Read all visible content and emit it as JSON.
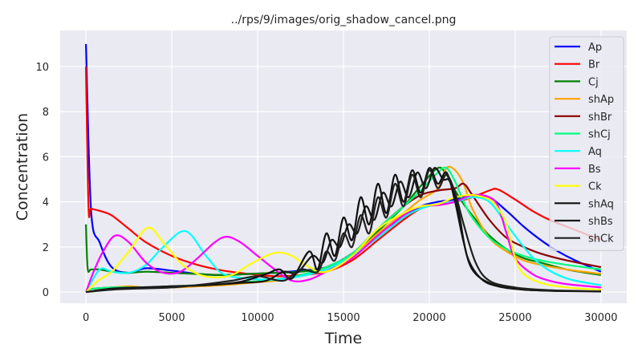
{
  "chart_data": {
    "type": "line",
    "title": "../rps/9/images/orig_shadow_cancel.png",
    "xlabel": "Time",
    "ylabel": "Concentration",
    "xlim": [
      -1500,
      31500
    ],
    "ylim": [
      -0.5,
      11.6
    ],
    "xticks": [
      0,
      5000,
      10000,
      15000,
      20000,
      25000,
      30000
    ],
    "yticks": [
      0,
      2,
      4,
      6,
      8,
      10
    ],
    "grid": true,
    "legend_position": "top-right",
    "series": [
      {
        "name": "Ap",
        "color": "#0000ff",
        "x": [
          0,
          300,
          800,
          1500,
          2500,
          3500,
          5000,
          6500,
          8000,
          9500,
          11000,
          12500,
          14000,
          15500,
          17000,
          18500,
          19500,
          20500,
          21500,
          22500,
          23500,
          24500,
          25500,
          26500,
          27500,
          28500,
          30000
        ],
        "y": [
          11.0,
          3.6,
          2.2,
          1.1,
          0.85,
          1.05,
          0.95,
          0.8,
          0.75,
          0.8,
          0.85,
          0.95,
          1.1,
          1.7,
          2.6,
          3.3,
          3.8,
          4.0,
          4.1,
          4.3,
          4.2,
          3.6,
          2.9,
          2.3,
          1.8,
          1.4,
          0.9
        ]
      },
      {
        "name": "Br",
        "color": "#ff0000",
        "x": [
          0,
          150,
          300,
          800,
          1500,
          2500,
          3500,
          5000,
          6500,
          8000,
          9500,
          11000,
          12500,
          14000,
          15500,
          17000,
          18500,
          19500,
          20500,
          21500,
          22500,
          23500,
          24000,
          25000,
          26000,
          27000,
          28000,
          29000,
          30000
        ],
        "y": [
          10.0,
          3.8,
          3.7,
          3.6,
          3.4,
          2.8,
          2.2,
          1.6,
          1.2,
          0.95,
          0.8,
          0.7,
          0.75,
          0.9,
          1.4,
          2.3,
          3.2,
          3.7,
          3.9,
          4.0,
          4.2,
          4.5,
          4.55,
          4.1,
          3.6,
          3.2,
          2.9,
          2.6,
          2.3
        ]
      },
      {
        "name": "Cj",
        "color": "#008000",
        "x": [
          0,
          100,
          300,
          800,
          1500,
          2500,
          3500,
          5000,
          6500,
          8000,
          9500,
          11000,
          12500,
          14000,
          15500,
          17000,
          18500,
          19500,
          20500,
          21000,
          21500,
          22000,
          22500,
          23500,
          24500,
          25500,
          26500,
          28000,
          30000
        ],
        "y": [
          3.0,
          1.05,
          1.0,
          1.0,
          0.9,
          0.85,
          0.9,
          0.85,
          0.8,
          0.75,
          0.8,
          0.85,
          0.9,
          1.1,
          1.7,
          2.7,
          3.8,
          4.7,
          5.5,
          5.2,
          4.5,
          3.9,
          3.4,
          2.5,
          1.9,
          1.5,
          1.3,
          1.0,
          0.75
        ]
      },
      {
        "name": "shAp",
        "color": "#ffa500",
        "x": [
          0,
          500,
          1500,
          2500,
          3500,
          5000,
          6500,
          8000,
          9500,
          11000,
          12500,
          14000,
          15500,
          17000,
          18500,
          19500,
          20500,
          21000,
          21500,
          22000,
          22500,
          23500,
          24500,
          25500,
          26500,
          28000,
          30000
        ],
        "y": [
          0.1,
          0.15,
          0.2,
          0.25,
          0.2,
          0.2,
          0.25,
          0.3,
          0.4,
          0.5,
          0.7,
          1.0,
          1.6,
          2.6,
          3.5,
          4.1,
          4.6,
          5.5,
          5.4,
          4.8,
          3.7,
          2.4,
          1.8,
          1.4,
          1.2,
          1.0,
          0.8
        ]
      },
      {
        "name": "shBr",
        "color": "#8b0000",
        "x": [
          0,
          500,
          1500,
          2500,
          3500,
          5000,
          6500,
          8000,
          9500,
          11000,
          12500,
          14000,
          15500,
          17000,
          18500,
          19500,
          20500,
          21500,
          22000,
          22500,
          23500,
          24500,
          25500,
          26500,
          28000,
          30000
        ],
        "y": [
          0.1,
          0.15,
          0.2,
          0.2,
          0.2,
          0.25,
          0.3,
          0.35,
          0.45,
          0.55,
          0.75,
          1.1,
          1.7,
          2.8,
          3.8,
          4.3,
          4.5,
          4.6,
          4.8,
          4.3,
          3.2,
          2.4,
          2.0,
          1.7,
          1.4,
          1.1
        ]
      },
      {
        "name": "shCj",
        "color": "#00ff7f",
        "x": [
          0,
          500,
          1500,
          2500,
          3500,
          5000,
          6500,
          8000,
          9500,
          11000,
          12500,
          14000,
          15500,
          17000,
          18500,
          19500,
          20500,
          21000,
          21500,
          22000,
          22500,
          23500,
          24500,
          25500,
          26500,
          28000,
          30000
        ],
        "y": [
          0.1,
          0.15,
          0.2,
          0.2,
          0.2,
          0.25,
          0.3,
          0.35,
          0.45,
          0.55,
          0.75,
          1.1,
          1.7,
          2.8,
          3.8,
          4.5,
          5.3,
          5.5,
          4.9,
          4.0,
          3.3,
          2.4,
          1.9,
          1.6,
          1.4,
          1.2,
          1.0
        ]
      },
      {
        "name": "Aq",
        "color": "#00ffff",
        "x": [
          0,
          800,
          1500,
          2500,
          3500,
          4500,
          5800,
          7000,
          8000,
          9500,
          11000,
          12500,
          14000,
          15500,
          17000,
          18500,
          19500,
          20500,
          21500,
          22500,
          23500,
          24500,
          25500,
          26500,
          28000,
          30000
        ],
        "y": [
          0.0,
          1.0,
          0.9,
          0.85,
          1.2,
          2.0,
          2.7,
          1.6,
          0.8,
          0.6,
          0.55,
          0.7,
          1.0,
          1.6,
          2.4,
          3.3,
          3.7,
          3.9,
          4.0,
          4.2,
          4.0,
          3.0,
          2.0,
          1.2,
          0.6,
          0.3
        ]
      },
      {
        "name": "Bs",
        "color": "#ff00ff",
        "x": [
          0,
          500,
          1000,
          1700,
          2500,
          3500,
          4500,
          5500,
          6500,
          7500,
          8200,
          9000,
          10000,
          11000,
          12000,
          13000,
          14000,
          15500,
          17000,
          18500,
          19500,
          20500,
          21500,
          22500,
          23500,
          24000,
          24500,
          25000,
          26000,
          27000,
          28000,
          30000
        ],
        "y": [
          0.0,
          1.0,
          1.8,
          2.5,
          2.2,
          1.3,
          0.85,
          0.9,
          1.5,
          2.2,
          2.45,
          2.2,
          1.6,
          1.0,
          0.5,
          0.55,
          0.9,
          1.5,
          2.5,
          3.4,
          3.8,
          3.85,
          4.0,
          4.3,
          4.2,
          3.8,
          2.6,
          1.5,
          0.8,
          0.5,
          0.35,
          0.2
        ]
      },
      {
        "name": "Ck",
        "color": "#ffff00",
        "x": [
          0,
          700,
          1500,
          2500,
          3600,
          4500,
          5500,
          6500,
          7500,
          8500,
          9500,
          10500,
          11200,
          12000,
          13000,
          14000,
          15500,
          17000,
          18500,
          19500,
          20500,
          21500,
          22500,
          23500,
          24000,
          24500,
          25000,
          25500,
          26500,
          28000,
          30000
        ],
        "y": [
          0.0,
          0.5,
          0.9,
          1.8,
          2.85,
          2.2,
          1.3,
          0.8,
          0.65,
          0.75,
          1.2,
          1.6,
          1.75,
          1.6,
          1.1,
          0.9,
          1.6,
          2.8,
          3.5,
          3.8,
          3.9,
          4.2,
          4.3,
          4.1,
          3.7,
          3.0,
          1.5,
          0.8,
          0.4,
          0.2,
          0.1
        ]
      },
      {
        "name": "shAq",
        "color": "#101010",
        "x": [
          0,
          1500,
          3000,
          5000,
          7000,
          9000,
          10500,
          11300,
          12000,
          13000,
          13500,
          14000,
          14500,
          15000,
          15500,
          16000,
          16500,
          17000,
          17500,
          18000,
          18500,
          19000,
          19500,
          20000,
          20500,
          21000,
          21500,
          22000,
          22500,
          23500,
          25000,
          27000,
          30000
        ],
        "y": [
          0.0,
          0.15,
          0.2,
          0.25,
          0.3,
          0.45,
          0.8,
          1.0,
          0.6,
          1.8,
          1.0,
          2.6,
          1.6,
          3.3,
          2.3,
          4.2,
          3.0,
          4.8,
          3.5,
          5.2,
          4.0,
          5.4,
          4.4,
          5.5,
          4.8,
          5.3,
          4.0,
          2.2,
          1.0,
          0.4,
          0.15,
          0.05,
          0.03
        ]
      },
      {
        "name": "shBs",
        "color": "#151515",
        "x": [
          0,
          1500,
          3000,
          5000,
          7000,
          9000,
          10500,
          11500,
          12300,
          13200,
          13800,
          14300,
          14800,
          15300,
          15800,
          16300,
          16800,
          17300,
          17800,
          18300,
          18800,
          19300,
          19800,
          20300,
          20800,
          21200,
          21700,
          22200,
          23000,
          24000,
          25500,
          27500,
          30000
        ],
        "y": [
          0.0,
          0.12,
          0.18,
          0.25,
          0.3,
          0.4,
          0.5,
          0.9,
          0.85,
          1.6,
          1.3,
          2.3,
          2.0,
          3.0,
          2.6,
          3.8,
          3.2,
          4.4,
          3.8,
          4.9,
          4.2,
          5.3,
          4.6,
          5.5,
          5.0,
          4.9,
          3.6,
          1.6,
          0.6,
          0.25,
          0.1,
          0.05,
          0.02
        ]
      },
      {
        "name": "shCk",
        "color": "#202020",
        "x": [
          0,
          1500,
          3000,
          5000,
          7000,
          8500,
          10000,
          11500,
          12500,
          13500,
          14000,
          14500,
          15000,
          15500,
          16000,
          16500,
          17000,
          17500,
          18000,
          18500,
          19000,
          19500,
          20000,
          20500,
          21000,
          21500,
          22000,
          22700,
          23500,
          25000,
          27000,
          30000
        ],
        "y": [
          0.0,
          0.1,
          0.15,
          0.2,
          0.35,
          0.5,
          0.7,
          0.5,
          1.0,
          0.9,
          1.8,
          1.4,
          2.6,
          2.0,
          3.4,
          2.6,
          4.2,
          3.3,
          4.8,
          3.8,
          5.2,
          4.2,
          5.4,
          4.6,
          5.2,
          4.4,
          3.0,
          1.3,
          0.5,
          0.2,
          0.08,
          0.03
        ]
      }
    ]
  }
}
